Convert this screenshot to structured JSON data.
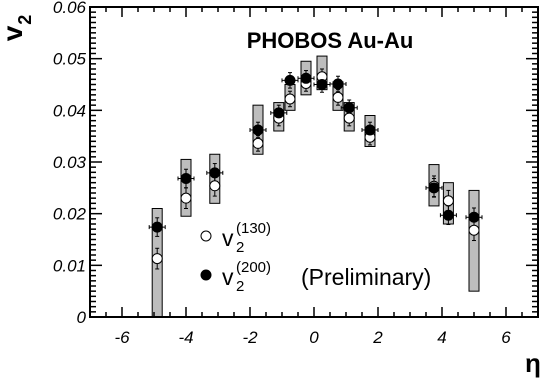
{
  "chart_data": {
    "type": "scatter",
    "title": "PHOBOS Au-Au",
    "xlabel": "η",
    "ylabel_main": "v",
    "ylabel_sub": "2",
    "xlim": [
      -7,
      7
    ],
    "ylim": [
      0,
      0.06
    ],
    "x_ticks": [
      -6,
      -4,
      -2,
      0,
      2,
      4,
      6
    ],
    "x_tick_labels": [
      "-6",
      "-4",
      "-2",
      "0",
      "2",
      "4",
      "6"
    ],
    "y_ticks": [
      0,
      0.01,
      0.02,
      0.03,
      0.04,
      0.05,
      0.06
    ],
    "y_tick_labels": [
      "0",
      "0.01",
      "0.02",
      "0.03",
      "0.04",
      "0.05",
      "0.06"
    ],
    "grid": false,
    "legend_position": "lower-center",
    "series": [
      {
        "name": "130",
        "legend_main": "v",
        "legend_sub": "2",
        "legend_sup": "(130)",
        "legend_suffix": "",
        "marker": "open-circle",
        "x": [
          -4.9,
          -4.0,
          -3.1,
          -1.75,
          -1.1,
          -0.75,
          -0.25,
          0.25,
          0.75,
          1.1,
          1.75,
          3.75,
          4.2,
          5.0
        ],
        "y": [
          0.0113,
          0.023,
          0.0254,
          0.0336,
          0.0385,
          0.0422,
          0.0452,
          0.0465,
          0.0425,
          0.0385,
          0.0348,
          0.0253,
          0.0225,
          0.0168
        ],
        "yerr": [
          0.002,
          0.002,
          0.002,
          0.0015,
          0.0015,
          0.0015,
          0.0015,
          0.0015,
          0.0015,
          0.0015,
          0.0015,
          0.002,
          0.002,
          0.002
        ],
        "sys_low": [
          0.0,
          0.0195,
          0.022,
          0.0315,
          0.036,
          0.04,
          0.043,
          0.044,
          0.04,
          0.036,
          0.033,
          0.0215,
          0.018,
          0.005
        ],
        "sys_high": [
          0.021,
          0.0305,
          0.0315,
          0.041,
          0.0415,
          0.045,
          0.0495,
          0.0505,
          0.0455,
          0.0415,
          0.039,
          0.0295,
          0.026,
          0.0245
        ]
      },
      {
        "name": "200",
        "legend_main": "v",
        "legend_sub": "2",
        "legend_sup": "(200)",
        "legend_suffix": "(Preliminary)",
        "marker": "filled-circle",
        "x": [
          -4.9,
          -4.0,
          -3.1,
          -1.75,
          -1.1,
          -0.75,
          -0.25,
          0.25,
          0.75,
          1.1,
          1.75,
          3.75,
          4.2,
          5.0
        ],
        "y": [
          0.0174,
          0.0268,
          0.0279,
          0.0362,
          0.0395,
          0.0458,
          0.0462,
          0.045,
          0.0451,
          0.0405,
          0.0362,
          0.025,
          0.0197,
          0.0193
        ],
        "yerr": [
          0.0018,
          0.0018,
          0.0018,
          0.0015,
          0.0015,
          0.0015,
          0.0015,
          0.0015,
          0.0015,
          0.0015,
          0.0015,
          0.0018,
          0.0018,
          0.0018
        ],
        "xerr": [
          0.25,
          0.25,
          0.25,
          0.25,
          0.25,
          0.25,
          0.25,
          0.25,
          0.25,
          0.25,
          0.25,
          0.25,
          0.25,
          0.25
        ]
      }
    ]
  }
}
